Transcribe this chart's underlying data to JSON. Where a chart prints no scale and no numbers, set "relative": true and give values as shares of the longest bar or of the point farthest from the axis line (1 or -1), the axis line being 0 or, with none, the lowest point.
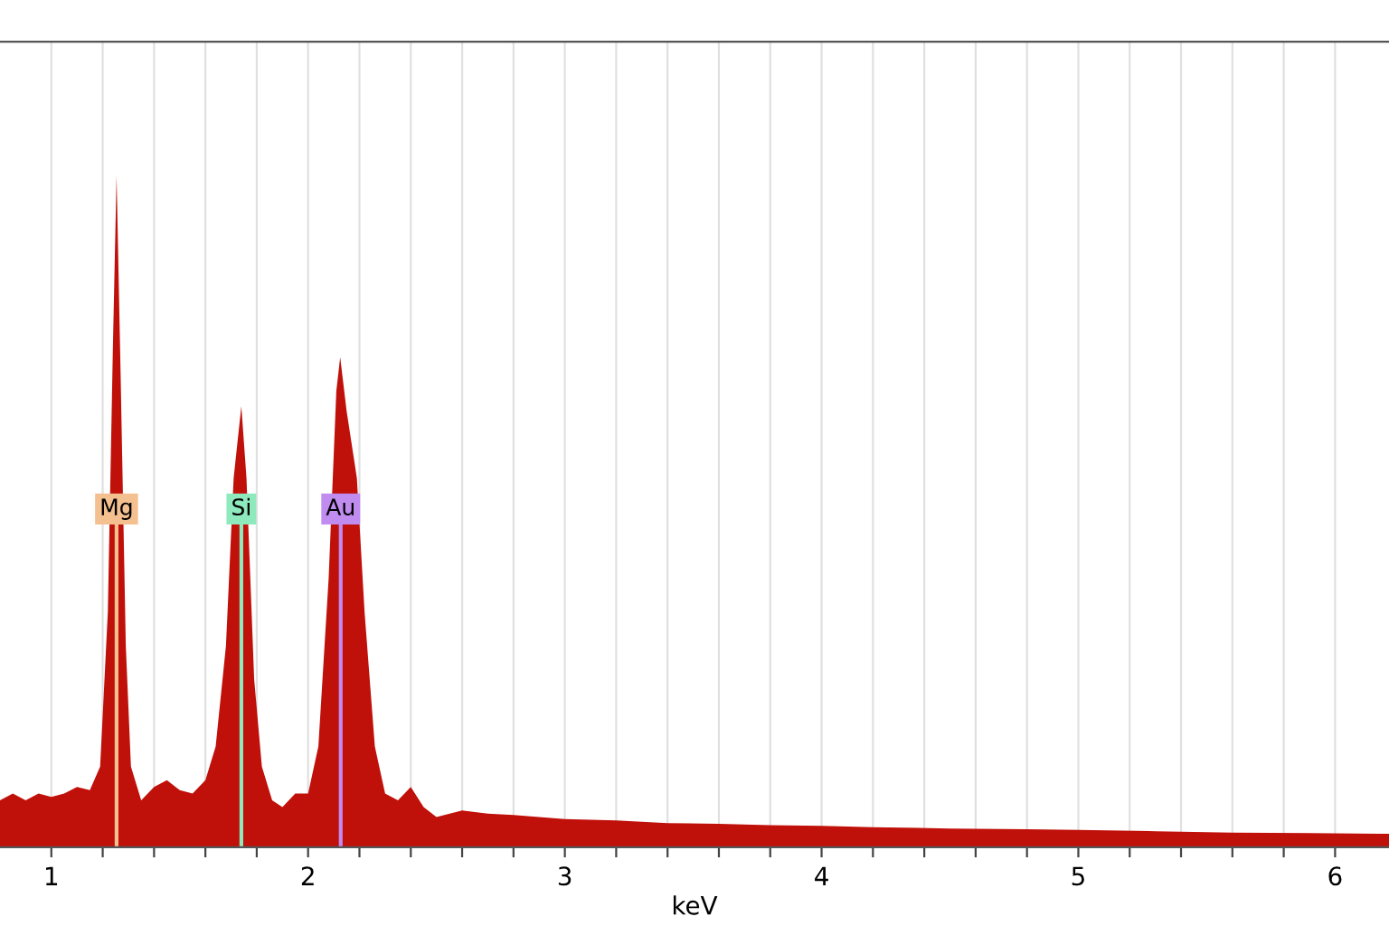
{
  "chart_data": {
    "type": "area",
    "relative": true,
    "xlabel": "keV",
    "xlim": [
      0.8,
      6.21
    ],
    "xticks": [
      1,
      {
        "value": 1.2,
        "label": null
      },
      {
        "value": 1.4,
        "label": null
      },
      {
        "value": 1.6,
        "label": null
      },
      {
        "value": 1.8,
        "label": null
      },
      2,
      {
        "value": 2.2,
        "label": null
      },
      {
        "value": 2.4,
        "label": null
      },
      {
        "value": 2.6,
        "label": null
      },
      {
        "value": 2.8,
        "label": null
      },
      3,
      {
        "value": 3.2,
        "label": null
      },
      {
        "value": 3.4,
        "label": null
      },
      {
        "value": 3.6,
        "label": null
      },
      {
        "value": 3.8,
        "label": null
      },
      4,
      {
        "value": 4.2,
        "label": null
      },
      {
        "value": 4.4,
        "label": null
      },
      {
        "value": 4.6,
        "label": null
      },
      {
        "value": 4.8,
        "label": null
      },
      5,
      {
        "value": 5.2,
        "label": null
      },
      {
        "value": 5.4,
        "label": null
      },
      {
        "value": 5.6,
        "label": null
      },
      {
        "value": 5.8,
        "label": null
      },
      6
    ],
    "grid": "x",
    "series": [
      {
        "color": "#c0100a",
        "x": [
          0.8,
          0.85,
          0.9,
          0.95,
          1.0,
          1.05,
          1.1,
          1.15,
          1.19,
          1.22,
          1.24,
          1.254,
          1.27,
          1.29,
          1.31,
          1.35,
          1.4,
          1.45,
          1.5,
          1.55,
          1.6,
          1.64,
          1.68,
          1.71,
          1.74,
          1.76,
          1.79,
          1.82,
          1.86,
          1.9,
          1.95,
          2.0,
          2.04,
          2.08,
          2.11,
          2.125,
          2.15,
          2.19,
          2.22,
          2.26,
          2.3,
          2.35,
          2.4,
          2.45,
          2.5,
          2.6,
          2.7,
          2.8,
          2.9,
          3.0,
          3.2,
          3.4,
          3.6,
          3.8,
          4.0,
          4.2,
          4.5,
          4.8,
          5.0,
          5.3,
          5.6,
          5.9,
          6.21
        ],
        "values": [
          0.07,
          0.08,
          0.07,
          0.08,
          0.075,
          0.08,
          0.09,
          0.085,
          0.12,
          0.35,
          0.75,
          1.0,
          0.7,
          0.3,
          0.12,
          0.07,
          0.09,
          0.1,
          0.085,
          0.08,
          0.1,
          0.15,
          0.3,
          0.55,
          0.657,
          0.55,
          0.25,
          0.12,
          0.07,
          0.06,
          0.08,
          0.08,
          0.15,
          0.4,
          0.68,
          0.73,
          0.65,
          0.55,
          0.35,
          0.15,
          0.08,
          0.07,
          0.09,
          0.06,
          0.045,
          0.055,
          0.05,
          0.048,
          0.045,
          0.042,
          0.04,
          0.036,
          0.035,
          0.033,
          0.032,
          0.03,
          0.028,
          0.027,
          0.026,
          0.024,
          0.022,
          0.021,
          0.02
        ]
      }
    ],
    "ref_lines": [
      {
        "axis": "x",
        "value": 1.254,
        "label": "Mg",
        "color": "#f5c08f"
      },
      {
        "axis": "x",
        "value": 1.74,
        "label": "Si",
        "color": "#8eeabd"
      },
      {
        "axis": "x",
        "value": 2.127,
        "label": "Au",
        "color": "#c08cf0"
      }
    ]
  }
}
